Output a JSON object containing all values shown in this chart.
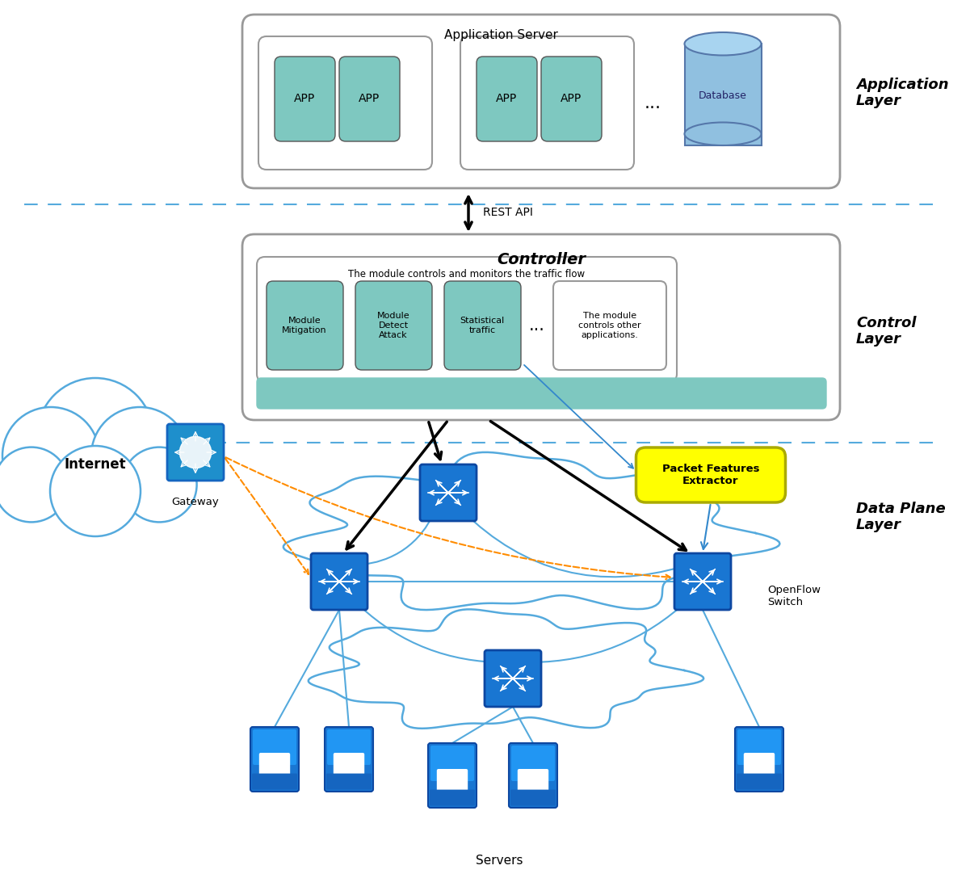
{
  "bg_color": "#ffffff",
  "app_layer_label": "Application\nLayer",
  "control_layer_label": "Control\nLayer",
  "data_plane_label": "Data Plane\nLayer",
  "app_server_label": "Application Server",
  "controller_label": "Controller",
  "rest_api_label": "REST API",
  "internet_label": "Internet",
  "gateway_label": "Gateway",
  "servers_label": "Servers",
  "openflow_label": "OpenFlow\nSwitch",
  "packet_features_label": "Packet Features\nExtractor",
  "module_traffic_label": "The module controls and monitors the traffic flow",
  "module_other_label": "The module\ncontrols other\napplications.",
  "module_mit_label": "Module\nMitigation",
  "module_detect_label": "Module\nDetect\nAttack",
  "module_stat_label": "Statistical\ntraffic",
  "teal_color": "#7EC8C0",
  "blue_icon": "#1E8FCC",
  "blue_icon2": "#2196F3",
  "dark_blue_icon": "#1565C0",
  "db_color": "#90C0E0",
  "yellow": "#FFFF00",
  "dashed_blue": "#55AADD",
  "orange_dashed": "#FF8C00",
  "switch_blue": "#1976D2",
  "switch_border": "#0D47A1",
  "server_blue": "#1976D2"
}
